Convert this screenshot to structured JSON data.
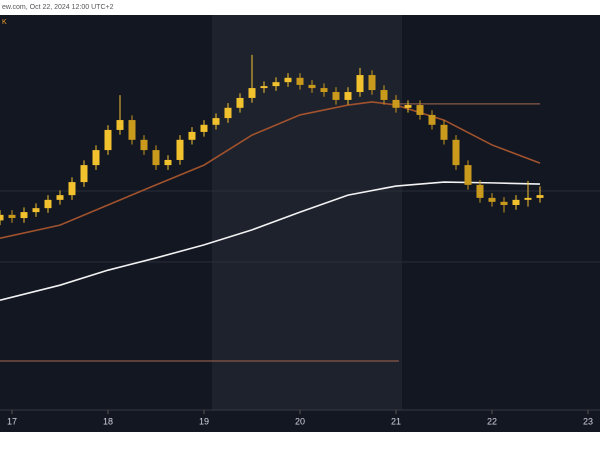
{
  "chart_data": {
    "type": "candlestick",
    "header": "ew.com, Oct 22, 2024 12:00 UTC+2",
    "symbol": "K",
    "x": [
      16.875,
      17,
      17.125,
      17.25,
      17.375,
      17.5,
      17.625,
      17.75,
      17.875,
      18,
      18.125,
      18.25,
      18.375,
      18.5,
      18.625,
      18.75,
      18.875,
      19,
      19.125,
      19.25,
      19.375,
      19.5,
      19.625,
      19.75,
      19.875,
      20,
      20.125,
      20.25,
      20.375,
      20.5,
      20.625,
      20.75,
      20.875,
      21,
      21.125,
      21.25,
      21.375,
      21.5,
      21.625,
      21.75,
      21.875,
      22,
      22.125,
      22.25,
      22.375,
      22.5
    ],
    "open": [
      48.0,
      49.4,
      48.6,
      50.1,
      51.1,
      53.2,
      54.4,
      57.7,
      62.0,
      65.8,
      70.9,
      73.4,
      68.4,
      65.8,
      62.0,
      63.3,
      68.4,
      70.4,
      72.2,
      73.9,
      76.5,
      79.0,
      81.5,
      82.0,
      83.0,
      84.1,
      82.3,
      81.5,
      80.5,
      78.5,
      80.5,
      84.8,
      81.0,
      78.5,
      76.5,
      77.2,
      74.7,
      72.2,
      68.4,
      62.0,
      57.0,
      53.7,
      52.7,
      51.9,
      53.2,
      53.7
    ],
    "high": [
      50.6,
      50.6,
      51.3,
      52.3,
      54.4,
      55.6,
      58.9,
      63.2,
      67.0,
      72.1,
      79.7,
      74.6,
      69.6,
      67.0,
      64.5,
      69.6,
      71.6,
      73.4,
      75.1,
      77.7,
      80.2,
      89.9,
      83.2,
      84.2,
      85.3,
      85.3,
      83.5,
      82.7,
      81.7,
      81.7,
      86.6,
      86.0,
      82.2,
      79.7,
      78.4,
      78.4,
      75.9,
      73.4,
      69.6,
      63.2,
      58.2,
      54.9,
      53.9,
      54.4,
      58.0,
      56.6
    ],
    "low": [
      46.8,
      47.4,
      47.4,
      48.9,
      49.9,
      52.0,
      53.2,
      56.5,
      60.8,
      64.6,
      69.7,
      67.2,
      64.6,
      60.8,
      60.8,
      62.1,
      67.2,
      69.2,
      71.0,
      72.7,
      75.3,
      77.8,
      80.3,
      80.8,
      81.8,
      81.1,
      80.3,
      79.3,
      77.3,
      77.3,
      79.3,
      79.8,
      77.3,
      75.3,
      75.3,
      73.5,
      71.0,
      67.2,
      60.8,
      55.8,
      52.5,
      51.5,
      50.0,
      50.7,
      51.5,
      52.5
    ],
    "close": [
      49.4,
      48.6,
      50.1,
      51.1,
      53.2,
      54.4,
      57.7,
      62.0,
      65.8,
      70.9,
      73.4,
      68.4,
      65.8,
      62.0,
      63.3,
      68.4,
      70.4,
      72.2,
      73.9,
      76.5,
      79.0,
      81.5,
      82.0,
      83.0,
      84.1,
      82.3,
      81.5,
      80.5,
      78.5,
      80.5,
      84.8,
      81.0,
      78.5,
      76.5,
      77.2,
      74.7,
      72.2,
      68.4,
      62.0,
      57.0,
      53.7,
      52.7,
      51.9,
      53.2,
      53.7,
      54.4
    ],
    "up_color": "#f2c12e",
    "down_color": "#c99a1c",
    "lines": [
      {
        "color": "#a0522d",
        "x": [
          16.875,
          17.5,
          18,
          18.5,
          19,
          19.5,
          20,
          20.5,
          20.75,
          21,
          21.5,
          22,
          22.5
        ],
        "values": [
          43.5,
          46.8,
          51.9,
          57.0,
          62.0,
          69.6,
          74.7,
          77.2,
          78.0,
          77.2,
          73.4,
          67.1,
          62.5
        ]
      },
      {
        "color": "#f2f2f2",
        "x": [
          16.875,
          17.5,
          18,
          18.5,
          19,
          19.5,
          20,
          20.5,
          21,
          21.5,
          22,
          22.5
        ],
        "values": [
          27.8,
          31.6,
          35.4,
          38.5,
          41.8,
          45.6,
          50.1,
          54.4,
          56.7,
          57.7,
          57.5,
          57.2
        ]
      }
    ],
    "levels": [
      {
        "color": "#8a5a4a",
        "x": [
          21.03,
          22.5
        ],
        "value": 77.5
      },
      {
        "color": "#8a5a4a",
        "x": [
          16.875,
          21.03
        ],
        "value": 12.4
      }
    ],
    "xlim": [
      16.875,
      23.125
    ],
    "ylim": [
      0,
      100
    ],
    "xticks": [
      17,
      18,
      19,
      20,
      21,
      22,
      23
    ]
  }
}
